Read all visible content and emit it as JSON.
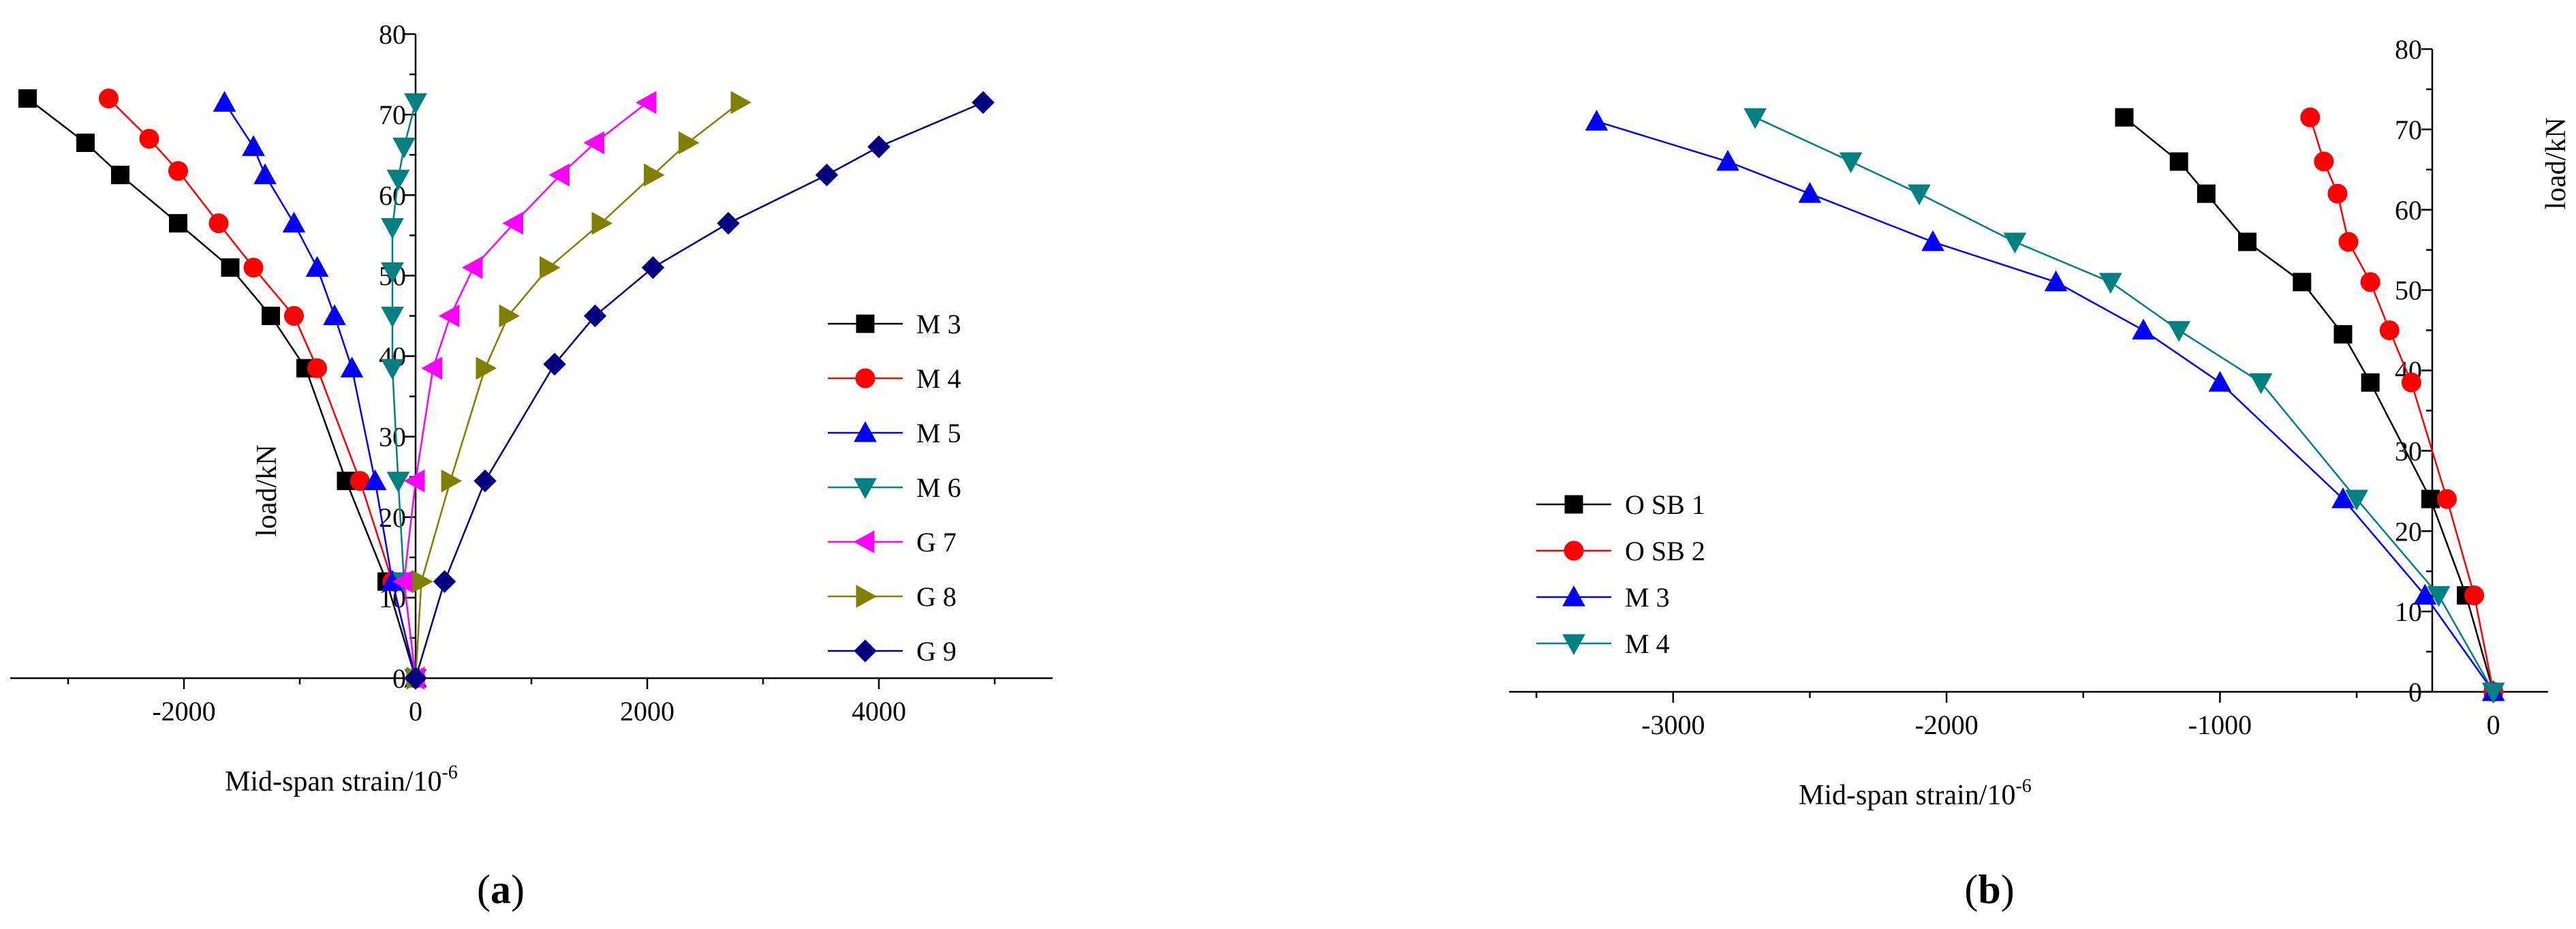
{
  "chart_data": [
    {
      "panel": "(a)",
      "panel_letter": "a",
      "type": "line",
      "xlabel_base": "Mid-span strain/10",
      "xlabel_exp": "-6",
      "ylabel": "load/kN",
      "xlim": [
        -3500,
        5500
      ],
      "ylim": [
        0,
        80
      ],
      "xticks": [
        -2000,
        0,
        2000,
        4000
      ],
      "yticks": [
        0,
        10,
        20,
        30,
        40,
        50,
        60,
        70,
        80
      ],
      "grid": false,
      "legend_position": "right",
      "series": [
        {
          "name": "M 3",
          "color": "#000000",
          "marker": "square",
          "points": [
            [
              0,
              0
            ],
            [
              -250,
              12
            ],
            [
              -600,
              24.5
            ],
            [
              -950,
              38.5
            ],
            [
              -1250,
              45
            ],
            [
              -1600,
              51
            ],
            [
              -2050,
              56.5
            ],
            [
              -2550,
              62.5
            ],
            [
              -2850,
              66.5
            ],
            [
              -3350,
              72
            ]
          ]
        },
        {
          "name": "M 4",
          "color": "#ff0000",
          "marker": "circle",
          "points": [
            [
              0,
              0
            ],
            [
              -200,
              12
            ],
            [
              -480,
              24.5
            ],
            [
              -850,
              38.5
            ],
            [
              -1050,
              45
            ],
            [
              -1400,
              51
            ],
            [
              -1700,
              56.5
            ],
            [
              -2050,
              63
            ],
            [
              -2300,
              67
            ],
            [
              -2650,
              72
            ]
          ]
        },
        {
          "name": "M 5",
          "color": "#0000ff",
          "marker": "triangle-up",
          "points": [
            [
              0,
              0
            ],
            [
              -200,
              12
            ],
            [
              -350,
              24.5
            ],
            [
              -550,
              38.5
            ],
            [
              -700,
              45
            ],
            [
              -850,
              51
            ],
            [
              -1050,
              56.5
            ],
            [
              -1300,
              62.5
            ],
            [
              -1400,
              66
            ],
            [
              -1650,
              71.5
            ]
          ]
        },
        {
          "name": "M 6",
          "color": "#008080",
          "marker": "triangle-down",
          "points": [
            [
              0,
              0
            ],
            [
              -100,
              12
            ],
            [
              -150,
              24.5
            ],
            [
              -200,
              38.5
            ],
            [
              -200,
              45
            ],
            [
              -200,
              50.5
            ],
            [
              -200,
              56
            ],
            [
              -150,
              62
            ],
            [
              -100,
              66
            ],
            [
              0,
              71.5
            ]
          ]
        },
        {
          "name": "G 7",
          "color": "#ff00ff",
          "marker": "triangle-left",
          "points": [
            [
              0,
              0
            ],
            [
              -100,
              12
            ],
            [
              0,
              24.5
            ],
            [
              150,
              38.5
            ],
            [
              300,
              45
            ],
            [
              500,
              51
            ],
            [
              850,
              56.5
            ],
            [
              1250,
              62.5
            ],
            [
              1550,
              66.5
            ],
            [
              2000,
              71.5
            ]
          ]
        },
        {
          "name": "G 8",
          "color": "#808000",
          "marker": "triangle-right",
          "points": [
            [
              0,
              0
            ],
            [
              50,
              12
            ],
            [
              300,
              24.5
            ],
            [
              600,
              38.5
            ],
            [
              800,
              45
            ],
            [
              1150,
              51
            ],
            [
              1600,
              56.5
            ],
            [
              2050,
              62.5
            ],
            [
              2350,
              66.5
            ],
            [
              2800,
              71.5
            ]
          ]
        },
        {
          "name": "G 9",
          "color": "#000080",
          "marker": "diamond",
          "points": [
            [
              0,
              0
            ],
            [
              250,
              12
            ],
            [
              600,
              24.5
            ],
            [
              1200,
              39
            ],
            [
              1550,
              45
            ],
            [
              2050,
              51
            ],
            [
              2700,
              56.5
            ],
            [
              3550,
              62.5
            ],
            [
              4000,
              66
            ],
            [
              4900,
              71.5
            ]
          ]
        }
      ]
    },
    {
      "panel": "(b)",
      "panel_letter": "b",
      "type": "line",
      "xlabel_base": "Mid-span strain/10",
      "xlabel_exp": "-6",
      "ylabel": "load/kN",
      "xlim": [
        -3600,
        200
      ],
      "ylim": [
        0,
        80
      ],
      "xticks": [
        -3000,
        -2000,
        -1000,
        0
      ],
      "yticks": [
        0,
        10,
        20,
        30,
        40,
        50,
        60,
        70,
        80
      ],
      "grid": false,
      "legend_position": "bottom-left",
      "series": [
        {
          "name": "O SB 1",
          "color": "#000000",
          "marker": "square",
          "points": [
            [
              0,
              0
            ],
            [
              -100,
              12
            ],
            [
              -230,
              24
            ],
            [
              -450,
              38.5
            ],
            [
              -550,
              44.5
            ],
            [
              -700,
              51
            ],
            [
              -900,
              56
            ],
            [
              -1050,
              62
            ],
            [
              -1150,
              66
            ],
            [
              -1350,
              71.5
            ]
          ]
        },
        {
          "name": "O SB 2",
          "color": "#ff0000",
          "marker": "circle",
          "points": [
            [
              0,
              0
            ],
            [
              -70,
              12
            ],
            [
              -170,
              24
            ],
            [
              -300,
              38.5
            ],
            [
              -380,
              45
            ],
            [
              -450,
              51
            ],
            [
              -530,
              56
            ],
            [
              -570,
              62
            ],
            [
              -620,
              66
            ],
            [
              -670,
              71.5
            ]
          ]
        },
        {
          "name": "M 3",
          "color": "#0000ff",
          "marker": "triangle-up",
          "points": [
            [
              0,
              0
            ],
            [
              -250,
              12
            ],
            [
              -550,
              24
            ],
            [
              -1000,
              38.5
            ],
            [
              -1280,
              45
            ],
            [
              -1600,
              51
            ],
            [
              -2050,
              56
            ],
            [
              -2500,
              62
            ],
            [
              -2800,
              66
            ],
            [
              -3280,
              71
            ]
          ]
        },
        {
          "name": "M 4",
          "color": "#008080",
          "marker": "triangle-down",
          "points": [
            [
              0,
              0
            ],
            [
              -200,
              12
            ],
            [
              -500,
              24
            ],
            [
              -850,
              38.5
            ],
            [
              -1150,
              45
            ],
            [
              -1400,
              51
            ],
            [
              -1750,
              56
            ],
            [
              -2100,
              62
            ],
            [
              -2350,
              66
            ],
            [
              -2700,
              71.5
            ]
          ]
        }
      ]
    }
  ]
}
